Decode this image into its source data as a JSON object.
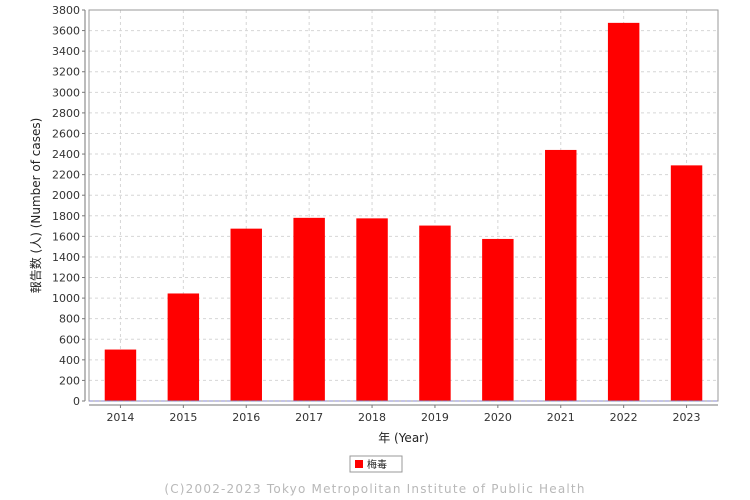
{
  "chart_data": {
    "type": "bar",
    "categories": [
      "2014",
      "2015",
      "2016",
      "2017",
      "2018",
      "2019",
      "2020",
      "2021",
      "2022",
      "2023"
    ],
    "series": [
      {
        "name": "梅毒",
        "color": "#ff0000",
        "values": [
          500,
          1045,
          1675,
          1780,
          1775,
          1705,
          1575,
          2440,
          3675,
          2290
        ]
      }
    ],
    "title": "",
    "xlabel": "年 (Year)",
    "ylabel": "報告数 (人) (Number of cases)",
    "ylim": [
      0,
      3800
    ],
    "ytick_step": 200,
    "grid": true,
    "legend_position": "bottom-center"
  },
  "footer": {
    "copyright": "(C)2002-2023 Tokyo Metropolitan Institute of Public Health"
  }
}
